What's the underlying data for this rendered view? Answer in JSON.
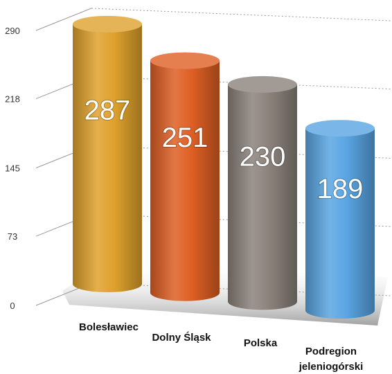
{
  "chart_data": {
    "type": "cylinder-bar",
    "categories": [
      "Bolesławiec",
      "Dolny Śląsk",
      "Polska",
      "Podregion jeleniogórski"
    ],
    "values": [
      287,
      251,
      230,
      189
    ],
    "colors": [
      "#dfa12c",
      "#de5f24",
      "#8b827b",
      "#59a5e2"
    ],
    "ylim": [
      0,
      290
    ],
    "yticks": [
      0,
      73,
      145,
      218,
      290
    ],
    "grid": true
  }
}
